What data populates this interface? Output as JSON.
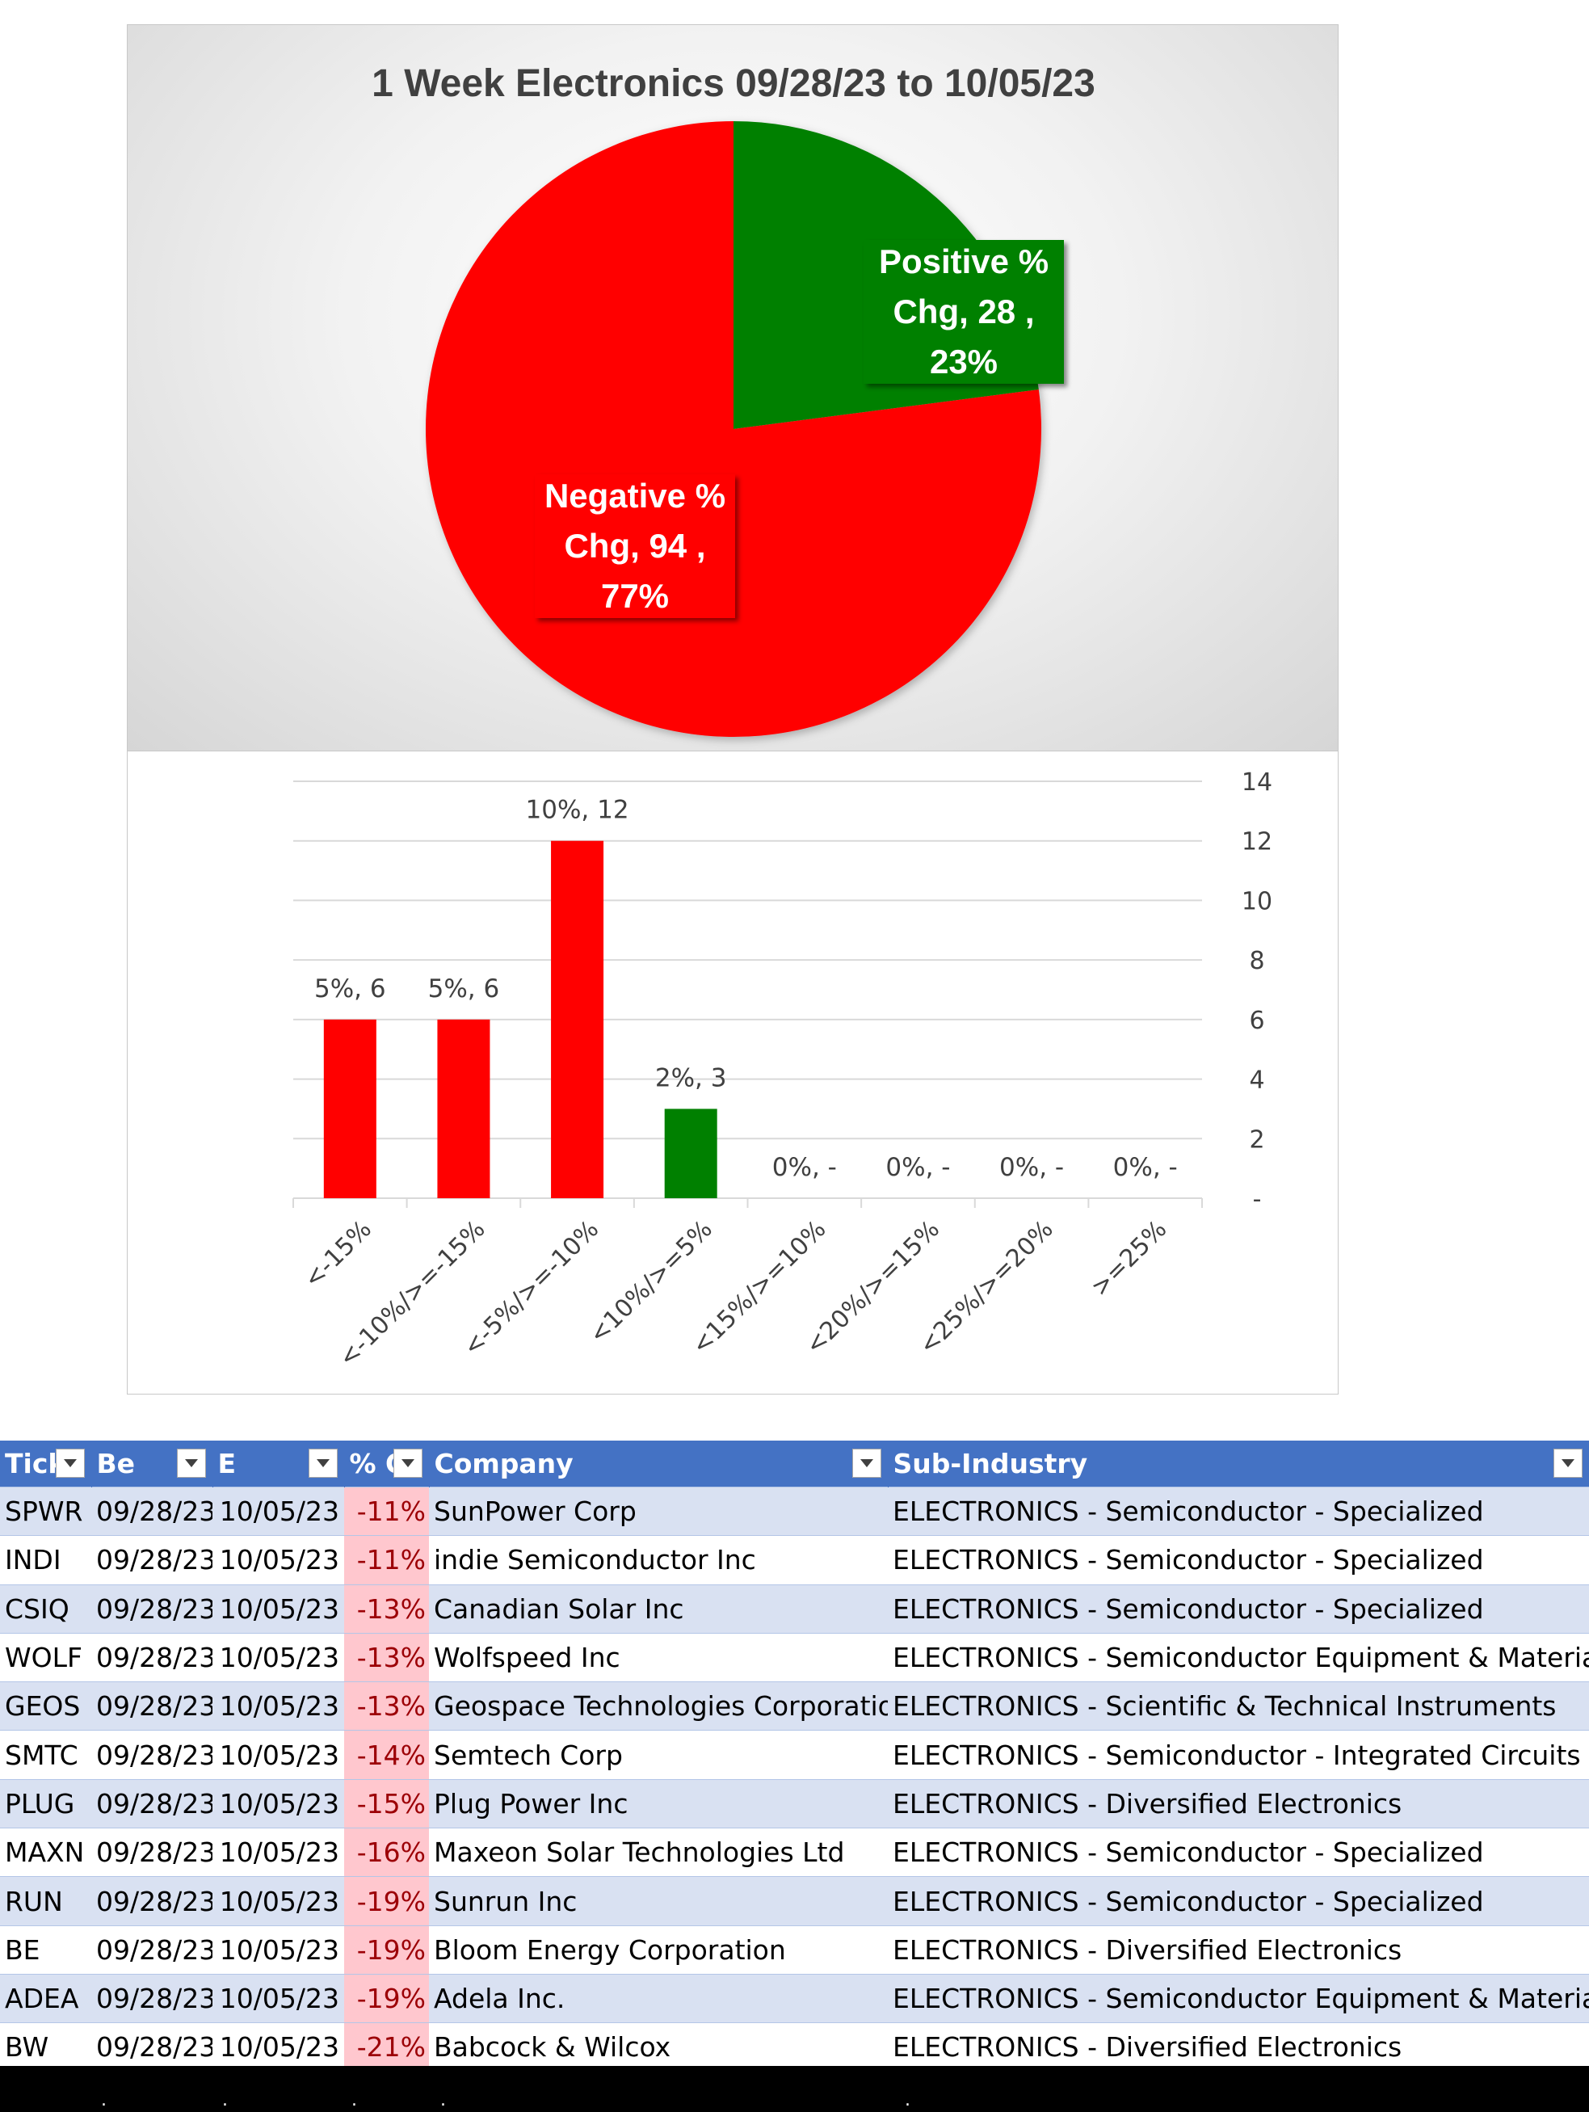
{
  "chart_data": [
    {
      "type": "pie",
      "title": "1 Week Electronics 09/28/23 to 10/05/23",
      "slices": [
        {
          "name": "Positive % Chg",
          "value": 28,
          "percent": "23%",
          "color": "#008000",
          "label_lines": [
            "Positive %",
            "Chg,  28 ,",
            "23%"
          ]
        },
        {
          "name": "Negative % Chg",
          "value": 94,
          "percent": "77%",
          "color": "#ff0000",
          "label_lines": [
            "Negative %",
            "Chg,  94 ,",
            "77%"
          ]
        }
      ]
    },
    {
      "type": "bar",
      "categories": [
        "<-15%",
        "<-10%/>=-15%",
        "<-5%/>=-10%",
        "<10%/>=5%",
        "<15%/>=10%",
        "<20%/>=15%",
        "<25%/>=20%",
        ">=25%"
      ],
      "values": [
        6,
        6,
        12,
        3,
        0,
        0,
        0,
        0
      ],
      "bar_colors": [
        "#ff0000",
        "#ff0000",
        "#ff0000",
        "#008000",
        "#008000",
        "#008000",
        "#008000",
        "#008000"
      ],
      "data_labels": [
        "5%,  6",
        "5%,  6",
        "10%,  12",
        "2%,  3",
        "0%,  -",
        "0%,  -",
        "0%,  -",
        "0%,  -"
      ],
      "y_ticks": [
        "-",
        "2",
        "4",
        "6",
        "8",
        "10",
        "12",
        "14"
      ],
      "ylim": [
        0,
        14
      ],
      "y_axis_side": "right",
      "grid": true
    }
  ],
  "table": {
    "headers": [
      {
        "label": "Tick"
      },
      {
        "label": "Be"
      },
      {
        "label": "E"
      },
      {
        "label": "% C"
      },
      {
        "label": "Company"
      },
      {
        "label": "Sub-Industry"
      }
    ],
    "rows": [
      [
        "SPWR",
        "09/28/23",
        "10/05/23",
        "-11%",
        "SunPower Corp",
        "ELECTRONICS - Semiconductor - Specialized"
      ],
      [
        "INDI",
        "09/28/23",
        "10/05/23",
        "-11%",
        "indie Semiconductor Inc",
        "ELECTRONICS - Semiconductor - Specialized"
      ],
      [
        "CSIQ",
        "09/28/23",
        "10/05/23",
        "-13%",
        "Canadian Solar Inc",
        "ELECTRONICS - Semiconductor - Specialized"
      ],
      [
        "WOLF",
        "09/28/23",
        "10/05/23",
        "-13%",
        "Wolfspeed Inc",
        "ELECTRONICS - Semiconductor Equipment & Materials"
      ],
      [
        "GEOS",
        "09/28/23",
        "10/05/23",
        "-13%",
        "Geospace Technologies Corporation",
        "ELECTRONICS - Scientific & Technical Instruments"
      ],
      [
        "SMTC",
        "09/28/23",
        "10/05/23",
        "-14%",
        "Semtech Corp",
        "ELECTRONICS - Semiconductor - Integrated Circuits"
      ],
      [
        "PLUG",
        "09/28/23",
        "10/05/23",
        "-15%",
        "Plug Power Inc",
        "ELECTRONICS - Diversified Electronics"
      ],
      [
        "MAXN",
        "09/28/23",
        "10/05/23",
        "-16%",
        "Maxeon Solar Technologies Ltd",
        "ELECTRONICS - Semiconductor - Specialized"
      ],
      [
        "RUN",
        "09/28/23",
        "10/05/23",
        "-19%",
        "Sunrun Inc",
        "ELECTRONICS - Semiconductor - Specialized"
      ],
      [
        "BE",
        "09/28/23",
        "10/05/23",
        "-19%",
        "Bloom Energy Corporation",
        "ELECTRONICS - Diversified Electronics"
      ],
      [
        "ADEA",
        "09/28/23",
        "10/05/23",
        "-19%",
        "Adela Inc.",
        "ELECTRONICS - Semiconductor Equipment & Materials"
      ],
      [
        "BW",
        "09/28/23",
        "10/05/23",
        "-21%",
        "Babcock & Wilcox",
        "ELECTRONICS - Diversified Electronics"
      ]
    ],
    "header_color": "#4472c4",
    "band_color": "#d9e1f2",
    "negative_cell_color": "#ffc7ce",
    "negative_text_color": "#9c0006",
    "filter_icon": "filter-dropdown-icon"
  }
}
